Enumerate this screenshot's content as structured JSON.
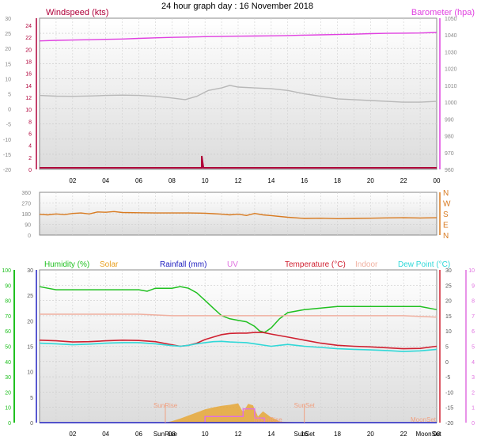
{
  "title": "24 hour graph day : 16 November 2018",
  "x_ticks": [
    "02",
    "04",
    "06",
    "08",
    "10",
    "12",
    "14",
    "16",
    "18",
    "20",
    "22",
    "00"
  ],
  "colors": {
    "windspeed": "#b0003a",
    "barometer": "#e040e0",
    "wind_avg": "#b8b8b8",
    "direction": "#d87a20",
    "humidity": "#20c020",
    "solar": "#e8a020",
    "rainfall": "#2020c0",
    "uv": "#e070e0",
    "temperature": "#d02030",
    "indoor": "#f0b0a0",
    "dewpoint": "#30d8d8",
    "sun": "#f0a080"
  },
  "chart_data": [
    {
      "type": "line",
      "panel": "wind-barometer",
      "x_unit": "hour",
      "xlim": [
        0,
        24
      ],
      "left_axis": {
        "label": "Windspeed (kts)",
        "ylim": [
          -20,
          30
        ],
        "ticks": [
          30,
          25,
          20,
          15,
          10,
          5,
          0,
          -5,
          -10,
          -15,
          -20
        ],
        "inner_ticks": [
          24,
          22,
          20,
          18,
          16,
          14,
          12,
          10,
          8,
          6,
          4,
          2,
          0
        ]
      },
      "right_axis": {
        "label": "Barometer (hpa)",
        "ylim": [
          960,
          1050
        ],
        "ticks": [
          1050,
          1040,
          1030,
          1020,
          1010,
          1000,
          990,
          980,
          970,
          960
        ]
      },
      "series": [
        {
          "name": "Barometer (hpa)",
          "axis": "right",
          "x": [
            0,
            1,
            2,
            3,
            4,
            5,
            6,
            7,
            8,
            9,
            10,
            11,
            12,
            13,
            14,
            15,
            16,
            17,
            18,
            19,
            20,
            21,
            22,
            23,
            24
          ],
          "values": [
            1036.5,
            1036.8,
            1037,
            1037.2,
            1037.4,
            1037.6,
            1038,
            1038.3,
            1038.6,
            1038.8,
            1039,
            1039.1,
            1039.3,
            1039.4,
            1039.5,
            1039.7,
            1039.9,
            1040.1,
            1040.3,
            1040.5,
            1040.8,
            1041,
            1041.1,
            1041.2,
            1041.5
          ]
        },
        {
          "axis": "right",
          "x": [
            0,
            1,
            2,
            3,
            4,
            5,
            6,
            7,
            8,
            8.8,
            9.5,
            10.2,
            11,
            11.5,
            12,
            13,
            14,
            15,
            16,
            17,
            18,
            19,
            20,
            21,
            22,
            23,
            24
          ],
          "values": [
            1004,
            1003.6,
            1003.5,
            1003.7,
            1004,
            1004.2,
            1004,
            1003.5,
            1002.5,
            1001.5,
            1003.5,
            1007,
            1008.5,
            1010,
            1009,
            1008.5,
            1008,
            1007,
            1005,
            1003.5,
            1002,
            1001.5,
            1001,
            1000.5,
            1000,
            1000,
            1000.5
          ]
        },
        {
          "name": "Windspeed (kts)",
          "axis": "left",
          "x": [
            0,
            9.8,
            9.8,
            9.85,
            9.9,
            24
          ],
          "values": [
            0,
            0,
            2,
            1,
            0,
            0
          ]
        }
      ]
    },
    {
      "type": "line",
      "panel": "direction",
      "xlim": [
        0,
        24
      ],
      "left_axis": {
        "ylim": [
          0,
          360
        ],
        "ticks": [
          360,
          270,
          180,
          90,
          0
        ]
      },
      "right_axis": {
        "labels": [
          "N",
          "W",
          "S",
          "E",
          "N"
        ]
      },
      "series": [
        {
          "axis": "left",
          "x": [
            0,
            0.5,
            1,
            1.5,
            2,
            2.5,
            3,
            3.5,
            4,
            4.5,
            5,
            6,
            7,
            8,
            9,
            10,
            10.5,
            11,
            11.5,
            12,
            12.5,
            13,
            13.5,
            14,
            15,
            16,
            17,
            18,
            19,
            20,
            21,
            22,
            23,
            24
          ],
          "values": [
            175,
            170,
            178,
            172,
            182,
            186,
            178,
            195,
            192,
            198,
            190,
            188,
            186,
            186,
            186,
            184,
            180,
            176,
            170,
            176,
            165,
            182,
            170,
            164,
            150,
            140,
            142,
            138,
            140,
            142,
            145,
            146,
            144,
            146
          ]
        }
      ]
    },
    {
      "type": "line",
      "panel": "temperature-humidity",
      "xlim": [
        0,
        24
      ],
      "left_outer_axis": {
        "ylim": [
          0,
          100
        ],
        "ticks": [
          100,
          90,
          80,
          70,
          60,
          50,
          40,
          30,
          20,
          10,
          0
        ]
      },
      "left_inner_axis": {
        "ylim": [
          0,
          30
        ],
        "ticks": [
          30,
          25,
          20,
          15,
          10,
          5,
          0
        ]
      },
      "right_axis": {
        "ylim": [
          -20,
          30
        ],
        "ticks": [
          30,
          25,
          20,
          15,
          10,
          5,
          0,
          -5,
          -10,
          -15,
          -20
        ]
      },
      "right_outer_axis": {
        "ylim": [
          0,
          10
        ],
        "ticks": [
          10,
          9,
          8,
          7,
          6,
          5,
          4,
          3,
          2,
          1,
          0
        ]
      },
      "legend": [
        "Humidity (%)",
        "Solar",
        "Rainfall (mm)",
        "UV",
        "Temperature (°C)",
        "Indoor",
        "Dew Point (°C)"
      ],
      "annotations": [
        {
          "text": "SunRise",
          "x": 7.6
        },
        {
          "text": "SunSet",
          "x": 16
        },
        {
          "text": "MoonSet",
          "x": 24
        },
        {
          "text": "MoonRise",
          "x": 13.8
        }
      ],
      "x_extra_labels": [
        {
          "text": "SunRise",
          "x": 7.6
        },
        {
          "text": "SunSet",
          "x": 16
        },
        {
          "text": "MoonSet",
          "x": 23.5
        }
      ],
      "series": [
        {
          "name": "Humidity (%)",
          "axis": "left_outer",
          "x": [
            0,
            0.5,
            1,
            2,
            3,
            4,
            5,
            6,
            6.5,
            7,
            7.5,
            8,
            8.5,
            9,
            9.5,
            10,
            10.5,
            11,
            11.5,
            12,
            12.5,
            13,
            13.3,
            13.6,
            14,
            14.5,
            15,
            15.5,
            16,
            17,
            18,
            19,
            20,
            21,
            22,
            23,
            24
          ],
          "values": [
            89,
            88,
            87,
            87,
            87,
            87,
            87,
            87,
            86,
            88,
            88,
            88,
            89,
            88,
            85,
            80,
            75,
            70,
            68,
            67,
            66,
            63,
            60,
            59,
            62,
            68,
            72,
            73,
            74,
            75,
            76,
            76,
            76,
            76,
            76,
            76,
            74
          ]
        },
        {
          "name": "Indoor",
          "axis": "left_outer",
          "x": [
            0,
            2,
            4,
            6,
            8,
            10,
            12,
            14,
            16,
            18,
            20,
            22,
            24
          ],
          "values": [
            71,
            71,
            71,
            71,
            70,
            70,
            70,
            70,
            70,
            70,
            70,
            70,
            69
          ]
        },
        {
          "name": "Temperature (°C)",
          "axis": "right",
          "x": [
            0,
            1,
            2,
            3,
            4,
            5,
            6,
            7,
            8,
            8.5,
            9,
            9.5,
            10,
            10.5,
            11,
            11.5,
            12,
            12.5,
            13,
            13.5,
            14,
            14.5,
            15,
            16,
            17,
            18,
            19,
            20,
            21,
            22,
            23,
            24
          ],
          "values": [
            7,
            6.8,
            6.4,
            6.5,
            6.8,
            7,
            6.9,
            6.5,
            5.5,
            5,
            5.3,
            6,
            7.2,
            8,
            8.8,
            9.2,
            9.3,
            9.3,
            9.5,
            9.5,
            9,
            8.5,
            8,
            7,
            6,
            5.3,
            5,
            4.8,
            4.5,
            4.2,
            4.3,
            5
          ]
        },
        {
          "name": "Dew Point (°C)",
          "axis": "right",
          "x": [
            0,
            1,
            2,
            3,
            4,
            5,
            6,
            7,
            8,
            8.5,
            9,
            9.5,
            10,
            10.5,
            11,
            11.5,
            12,
            12.5,
            13,
            13.5,
            14,
            14.5,
            15,
            16,
            17,
            18,
            19,
            20,
            21,
            22,
            23,
            24
          ],
          "values": [
            6,
            5.8,
            5.5,
            5.7,
            6,
            6.2,
            6.2,
            5.8,
            5.2,
            5,
            5.3,
            5.8,
            6.2,
            6.5,
            6.6,
            6.4,
            6.3,
            6.2,
            5.8,
            5.4,
            5,
            5.3,
            5.6,
            5,
            4.6,
            4.2,
            4,
            3.8,
            3.6,
            3.3,
            3.5,
            4
          ]
        },
        {
          "name": "Solar",
          "axis": "left_inner",
          "type": "area",
          "x": [
            7.6,
            8,
            8.5,
            9,
            9.5,
            10,
            10.5,
            11,
            11.5,
            12,
            12.3,
            12.6,
            12.9,
            13.2,
            13.5,
            13.8,
            14,
            14.3,
            14.5,
            16
          ],
          "values": [
            0,
            0.3,
            0.8,
            1.4,
            2,
            2.6,
            3,
            3.3,
            3.5,
            3.8,
            2,
            3.7,
            3.4,
            1.2,
            2.2,
            1.5,
            1,
            0.6,
            0.2,
            0
          ]
        },
        {
          "name": "UV",
          "axis": "right_outer",
          "x": [
            10,
            10,
            12.3,
            12.3,
            13,
            13,
            13.6,
            13.6
          ],
          "values": [
            0,
            0.4,
            0.4,
            0.9,
            0.9,
            0.3,
            0.3,
            0
          ]
        },
        {
          "name": "Rainfall (mm)",
          "axis": "left_inner",
          "x": [
            0,
            24
          ],
          "values": [
            0,
            0
          ]
        }
      ]
    }
  ]
}
